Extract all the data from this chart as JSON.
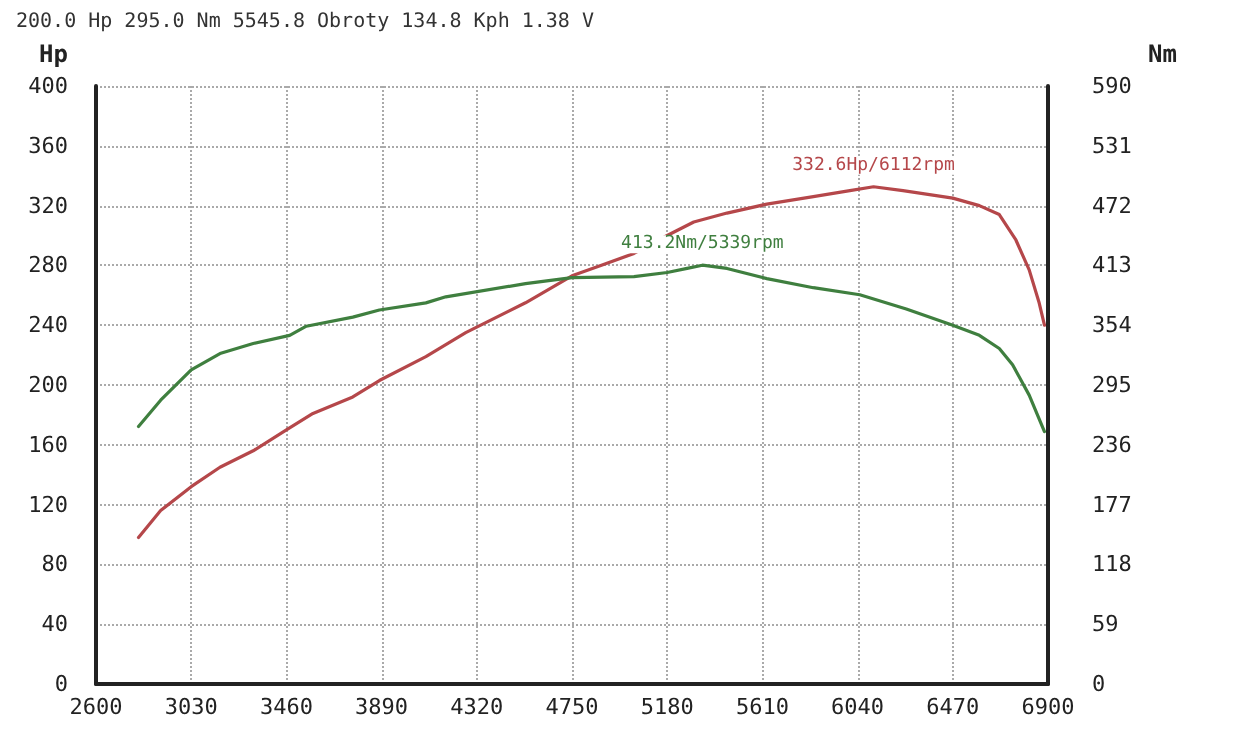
{
  "chart_data": {
    "type": "line",
    "annotations": [
      "200.0 Hp 295.0 Nm 5545.8 Obroty 134.8 Kph 1.38 V"
    ],
    "ylabel": "Hp",
    "y2label": "Nm",
    "xlim": [
      2600,
      6900
    ],
    "xticks": [
      2600,
      3030,
      3460,
      3890,
      4320,
      4750,
      5180,
      5610,
      6040,
      6470,
      6900
    ],
    "ylim": [
      0,
      400
    ],
    "yticks": [
      0,
      40,
      80,
      120,
      160,
      200,
      240,
      280,
      320,
      360,
      400
    ],
    "y2lim": [
      0,
      590
    ],
    "y2ticks": [
      0,
      59,
      118,
      177,
      236,
      295,
      354,
      413,
      472,
      531,
      590
    ],
    "grid": true,
    "marker": "none",
    "line_style": "solid",
    "series": [
      {
        "color": "#b5474a",
        "x": [
          2792,
          2892,
          3030,
          3160,
          3310,
          3460,
          3580,
          3760,
          3880,
          4090,
          4270,
          4540,
          4750,
          4880,
          5030,
          5180,
          5300,
          5450,
          5630,
          5840,
          6005,
          6112,
          6245,
          6470,
          6590,
          6680,
          6755,
          6815,
          6860,
          6884
        ],
        "values": [
          98,
          116,
          132,
          145,
          156,
          170,
          181,
          192,
          203,
          219,
          235,
          255,
          273,
          280,
          288,
          300,
          309,
          315,
          321,
          326,
          330,
          332.6,
          330,
          325,
          320,
          314,
          297,
          277,
          255,
          240
        ],
        "value_labels": [
          null,
          null,
          null,
          null,
          null,
          null,
          null,
          null,
          null,
          null,
          null,
          null,
          null,
          null,
          null,
          null,
          null,
          null,
          null,
          null,
          null,
          "332.6Hp/6112rpm",
          null,
          null,
          null,
          null,
          null,
          null,
          null,
          null
        ]
      },
      {
        "color": "#3f7f3f",
        "axis": "y2",
        "x": [
          2792,
          2892,
          3030,
          3160,
          3310,
          3475,
          3550,
          3760,
          3880,
          4090,
          4180,
          4540,
          4750,
          5030,
          5180,
          5270,
          5339,
          5450,
          5630,
          5840,
          6050,
          6260,
          6470,
          6590,
          6680,
          6740,
          6815,
          6884
        ],
        "values": [
          254,
          280,
          310,
          326,
          336,
          344,
          353,
          362,
          369,
          376,
          382,
          395,
          401,
          402,
          406,
          410,
          413.2,
          410,
          400,
          391,
          384,
          370,
          354,
          344,
          331,
          315,
          285,
          249
        ],
        "value_labels": [
          null,
          null,
          null,
          null,
          null,
          null,
          null,
          null,
          null,
          null,
          null,
          null,
          null,
          null,
          null,
          null,
          "413.2Nm/5339rpm",
          null,
          null,
          null,
          null,
          null,
          null,
          null,
          null,
          null,
          null,
          null
        ]
      }
    ]
  }
}
